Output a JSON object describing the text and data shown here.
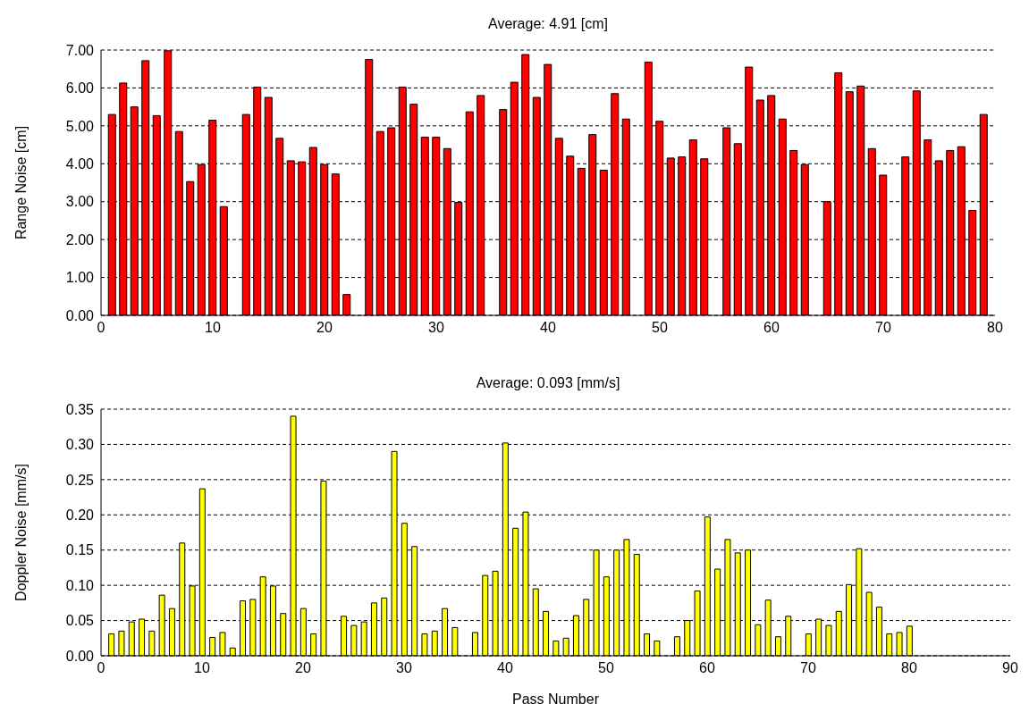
{
  "chart_data": [
    {
      "type": "bar",
      "title": "Average: 4.91 [cm]",
      "ylabel": "Range Noise [cm]",
      "color": "#ff0000",
      "x": [
        1,
        2,
        3,
        4,
        5,
        6,
        7,
        8,
        9,
        10,
        11,
        13,
        14,
        15,
        16,
        17,
        18,
        19,
        20,
        21,
        22,
        24,
        25,
        26,
        27,
        28,
        29,
        30,
        31,
        32,
        33,
        34,
        36,
        37,
        38,
        39,
        40,
        41,
        42,
        43,
        44,
        45,
        46,
        47,
        49,
        50,
        51,
        52,
        53,
        54,
        56,
        57,
        58,
        59,
        60,
        61,
        62,
        63,
        65,
        66,
        67,
        68,
        69,
        70,
        72,
        73,
        74,
        75,
        76,
        77,
        78,
        79
      ],
      "values": [
        5.3,
        6.13,
        5.5,
        6.72,
        5.27,
        6.98,
        4.85,
        3.53,
        3.98,
        5.15,
        2.87,
        5.3,
        6.02,
        5.75,
        4.67,
        4.08,
        4.05,
        4.43,
        3.98,
        3.73,
        0.55,
        6.75,
        4.85,
        4.95,
        6.02,
        5.57,
        4.7,
        4.7,
        4.4,
        2.98,
        5.37,
        5.8,
        5.43,
        6.15,
        6.88,
        5.75,
        6.62,
        4.67,
        4.2,
        3.88,
        4.77,
        3.83,
        5.85,
        5.18,
        6.68,
        5.12,
        4.15,
        4.18,
        4.63,
        4.13,
        4.95,
        4.53,
        6.55,
        5.68,
        5.8,
        5.18,
        4.35,
        3.98,
        3.0,
        6.4,
        5.9,
        6.05,
        4.4,
        3.7,
        4.18,
        5.92,
        4.63,
        4.08,
        4.35,
        4.45,
        2.77,
        5.3
      ],
      "xlim": [
        0,
        80
      ],
      "xticks": [
        0,
        10,
        20,
        30,
        40,
        50,
        60,
        70,
        80
      ],
      "ylim": [
        0,
        7
      ],
      "yticks": [
        {
          "value": 0,
          "label": "0.00"
        },
        {
          "value": 1,
          "label": "1.00"
        },
        {
          "value": 2,
          "label": "2.00"
        },
        {
          "value": 3,
          "label": "3.00"
        },
        {
          "value": 4,
          "label": "4.00"
        },
        {
          "value": 5,
          "label": "5.00"
        },
        {
          "value": 6,
          "label": "6.00"
        },
        {
          "value": 7,
          "label": "7.00"
        }
      ],
      "grid": "y"
    },
    {
      "type": "bar",
      "title": "Average: 0.093 [mm/s]",
      "xlabel": "Pass Number",
      "ylabel": "Doppler Noise [mm/s]",
      "color": "#ffff00",
      "x": [
        1,
        2,
        3,
        4,
        5,
        6,
        7,
        8,
        9,
        10,
        11,
        12,
        13,
        14,
        15,
        16,
        17,
        18,
        19,
        20,
        21,
        22,
        24,
        25,
        26,
        27,
        28,
        29,
        30,
        31,
        32,
        33,
        34,
        35,
        37,
        38,
        39,
        40,
        41,
        42,
        43,
        44,
        45,
        46,
        47,
        48,
        49,
        50,
        51,
        52,
        53,
        54,
        55,
        57,
        58,
        59,
        60,
        61,
        62,
        63,
        64,
        65,
        66,
        67,
        68,
        70,
        71,
        72,
        73,
        74,
        75,
        76,
        77,
        78,
        79,
        80
      ],
      "values": [
        0.031,
        0.035,
        0.048,
        0.052,
        0.035,
        0.086,
        0.067,
        0.16,
        0.099,
        0.237,
        0.026,
        0.033,
        0.011,
        0.078,
        0.08,
        0.112,
        0.099,
        0.06,
        0.34,
        0.067,
        0.031,
        0.248,
        0.056,
        0.043,
        0.048,
        0.075,
        0.082,
        0.29,
        0.188,
        0.155,
        0.031,
        0.035,
        0.067,
        0.04,
        0.033,
        0.114,
        0.12,
        0.302,
        0.181,
        0.204,
        0.095,
        0.063,
        0.021,
        0.025,
        0.057,
        0.08,
        0.15,
        0.112,
        0.15,
        0.165,
        0.144,
        0.031,
        0.021,
        0.027,
        0.05,
        0.092,
        0.197,
        0.123,
        0.165,
        0.146,
        0.15,
        0.044,
        0.079,
        0.027,
        0.056,
        0.031,
        0.052,
        0.043,
        0.063,
        0.101,
        0.152,
        0.09,
        0.069,
        0.031,
        0.033,
        0.042
      ],
      "xlim": [
        0,
        90
      ],
      "xticks": [
        0,
        10,
        20,
        30,
        40,
        50,
        60,
        70,
        80,
        90
      ],
      "ylim": [
        0,
        0.35
      ],
      "yticks": [
        {
          "value": 0,
          "label": "0.00"
        },
        {
          "value": 0.05,
          "label": "0.05"
        },
        {
          "value": 0.1,
          "label": "0.10"
        },
        {
          "value": 0.15,
          "label": "0.15"
        },
        {
          "value": 0.2,
          "label": "0.20"
        },
        {
          "value": 0.25,
          "label": "0.25"
        },
        {
          "value": 0.3,
          "label": "0.30"
        },
        {
          "value": 0.35,
          "label": "0.35"
        }
      ],
      "grid": "y"
    }
  ]
}
